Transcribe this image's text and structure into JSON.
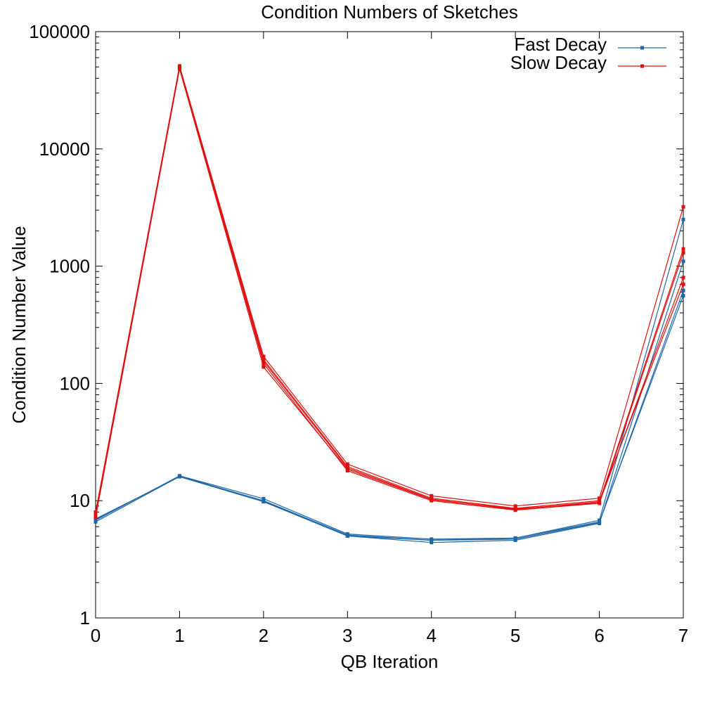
{
  "chart_data": {
    "type": "line",
    "title": "Condition Numbers of Sketches",
    "xlabel": "QB Iteration",
    "ylabel": "Condition Number Value",
    "x": [
      0,
      1,
      2,
      3,
      4,
      5,
      6,
      7
    ],
    "xlim": [
      0,
      7
    ],
    "ylim": [
      1,
      100000
    ],
    "yscale": "log",
    "x_ticks": [
      "0",
      "1",
      "2",
      "3",
      "4",
      "5",
      "6",
      "7"
    ],
    "y_ticks": [
      {
        "value": 1,
        "label": "1"
      },
      {
        "value": 10,
        "label": "10"
      },
      {
        "value": 100,
        "label": "100"
      },
      {
        "value": 1000,
        "label": "1000"
      },
      {
        "value": 10000,
        "label": "10000"
      },
      {
        "value": 100000,
        "label": "100000"
      }
    ],
    "grid": false,
    "legend": "top-right",
    "legend_entries": [
      {
        "label": "Fast Decay",
        "color": "#1f68a8"
      },
      {
        "label": "Slow Decay",
        "color": "#e01010"
      }
    ],
    "groups": [
      {
        "name": "Fast Decay",
        "color": "#1f68a8",
        "runs": [
          [
            6.8,
            16.3,
            10.4,
            5.2,
            4.7,
            4.8,
            6.8,
            2500
          ],
          [
            7.0,
            16.0,
            9.8,
            5.0,
            4.4,
            4.6,
            6.4,
            1100
          ],
          [
            6.6,
            16.1,
            10.0,
            5.1,
            4.6,
            4.7,
            6.5,
            620
          ],
          [
            6.9,
            16.2,
            9.9,
            5.0,
            4.6,
            4.8,
            6.6,
            560
          ]
        ]
      },
      {
        "name": "Slow Decay",
        "color": "#e01010",
        "runs": [
          [
            8.0,
            51000,
            170,
            20.5,
            11.0,
            9.0,
            10.5,
            3200
          ],
          [
            7.5,
            49000,
            155,
            19.0,
            10.3,
            8.4,
            9.8,
            1400
          ],
          [
            7.8,
            50000,
            148,
            18.0,
            10.0,
            8.3,
            9.5,
            1300
          ],
          [
            7.2,
            48000,
            138,
            18.5,
            10.2,
            8.5,
            9.6,
            800
          ],
          [
            7.6,
            50500,
            160,
            19.5,
            10.5,
            8.6,
            10.0,
            700
          ]
        ]
      }
    ]
  }
}
